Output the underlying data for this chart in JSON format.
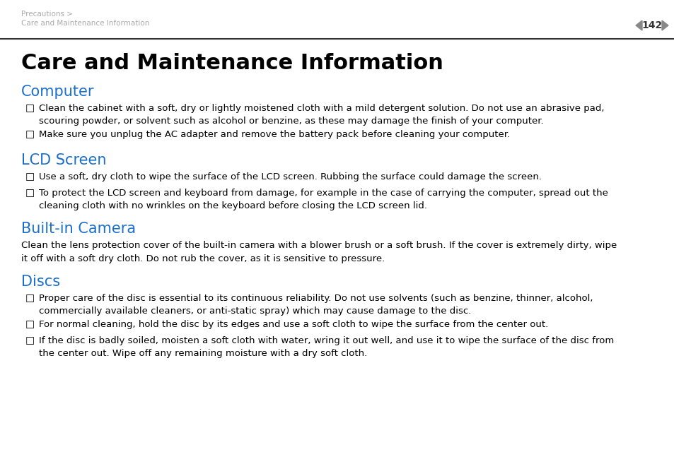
{
  "bg_color": "#ffffff",
  "header_line1": "Precautions >",
  "header_line2": "Care and Maintenance Information",
  "header_page": "142",
  "header_color": "#aaaaaa",
  "separator_color": "#333333",
  "page_title": "Care and Maintenance Information",
  "page_title_size": 22,
  "page_title_color": "#000000",
  "section_color": "#1a6fcc",
  "section_size": 15,
  "body_color": "#000000",
  "body_size": 9.5,
  "sections": [
    {
      "title": "Computer",
      "bullets": [
        "Clean the cabinet with a soft, dry or lightly moistened cloth with a mild detergent solution. Do not use an abrasive pad,\nscouring powder, or solvent such as alcohol or benzine, as these may damage the finish of your computer.",
        "Make sure you unplug the AC adapter and remove the battery pack before cleaning your computer."
      ],
      "paragraph": null
    },
    {
      "title": "LCD Screen",
      "bullets": [
        "Use a soft, dry cloth to wipe the surface of the LCD screen. Rubbing the surface could damage the screen.",
        "To protect the LCD screen and keyboard from damage, for example in the case of carrying the computer, spread out the\ncleaning cloth with no wrinkles on the keyboard before closing the LCD screen lid."
      ],
      "paragraph": null
    },
    {
      "title": "Built-in Camera",
      "bullets": null,
      "paragraph": "Clean the lens protection cover of the built-in camera with a blower brush or a soft brush. If the cover is extremely dirty, wipe\nit off with a soft dry cloth. Do not rub the cover, as it is sensitive to pressure."
    },
    {
      "title": "Discs",
      "bullets": [
        "Proper care of the disc is essential to its continuous reliability. Do not use solvents (such as benzine, thinner, alcohol,\ncommercially available cleaners, or anti-static spray) which may cause damage to the disc.",
        "For normal cleaning, hold the disc by its edges and use a soft cloth to wipe the surface from the center out.",
        "If the disc is badly soiled, moisten a soft cloth with water, wring it out well, and use it to wipe the surface of the disc from\nthe center out. Wipe off any remaining moisture with a dry soft cloth."
      ],
      "paragraph": null
    }
  ]
}
